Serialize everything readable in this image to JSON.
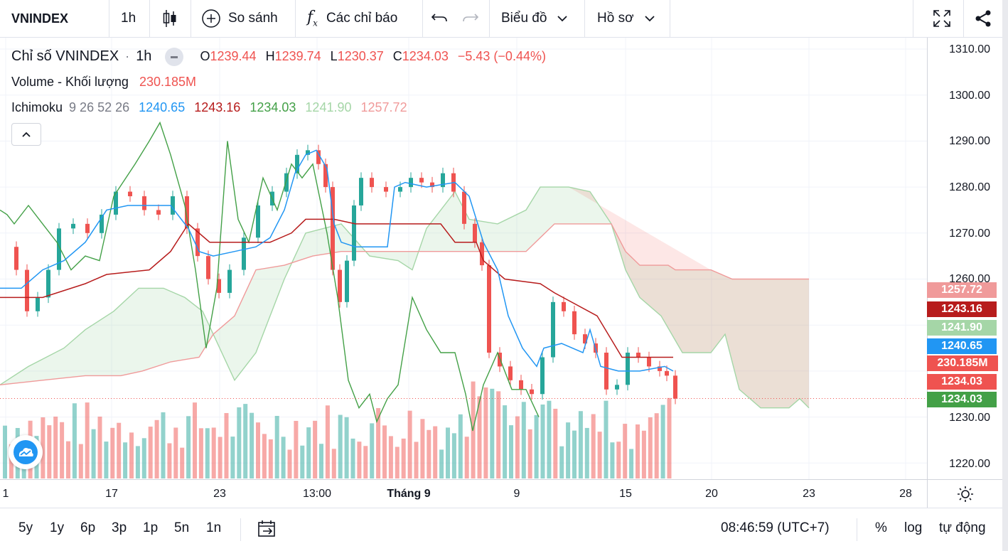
{
  "toolbar": {
    "symbol": "VNINDEX",
    "interval": "1h",
    "compare_label": "So sánh",
    "indicators_label": "Các chỉ báo",
    "chart_label": "Biểu đồ",
    "profile_label": "Hồ sơ"
  },
  "legend": {
    "title": "Chỉ số VNINDEX",
    "sep": "·",
    "interval": "1h",
    "o_label": "O",
    "o_value": "1239.44",
    "h_label": "H",
    "h_value": "1239.74",
    "l_label": "L",
    "l_value": "1230.37",
    "c_label": "C",
    "c_value": "1234.03",
    "change": "−5.43 (−0.44%)",
    "volume_label": "Volume - Khối lượng",
    "volume_value": "230.185M",
    "ichimoku_label": "Ichimoku",
    "ichimoku_params": "9 26 52 26",
    "ichi_values": [
      "1240.65",
      "1243.16",
      "1234.03",
      "1241.90",
      "1257.72"
    ]
  },
  "price_axis": {
    "ticks": [
      "1310.00",
      "1300.00",
      "1290.00",
      "1280.00",
      "1270.00",
      "1260.00",
      "1230.00",
      "1220.00"
    ],
    "tags": [
      {
        "text": "1257.72",
        "color": "#f09a9a"
      },
      {
        "text": "1243.16",
        "color": "#b71c1c"
      },
      {
        "text": "1241.90",
        "color": "#a5d6a7"
      },
      {
        "text": "1240.65",
        "color": "#2196f3"
      },
      {
        "text": "230.185M",
        "color": "#ef5350"
      },
      {
        "text": "1234.03",
        "color": "#ef5350"
      },
      {
        "text": "1234.03",
        "color": "#43a047"
      }
    ]
  },
  "time_axis": {
    "labels": [
      "1",
      "17",
      "23",
      "13:00",
      "Tháng 9",
      "9",
      "15",
      "20",
      "23",
      "28"
    ]
  },
  "bottom": {
    "ranges": [
      "5y",
      "1y",
      "6p",
      "3p",
      "1p",
      "5n",
      "1n"
    ],
    "clock": "08:46:59 (UTC+7)",
    "percent": "%",
    "log": "log",
    "auto": "tự động"
  },
  "colors": {
    "up": "#26a69a",
    "down": "#ef5350",
    "tenkan": "#2196f3",
    "kijun": "#b71c1c",
    "chikou": "#43a047",
    "span_a": "#a5d6a7",
    "span_b": "#f09a9a"
  }
}
